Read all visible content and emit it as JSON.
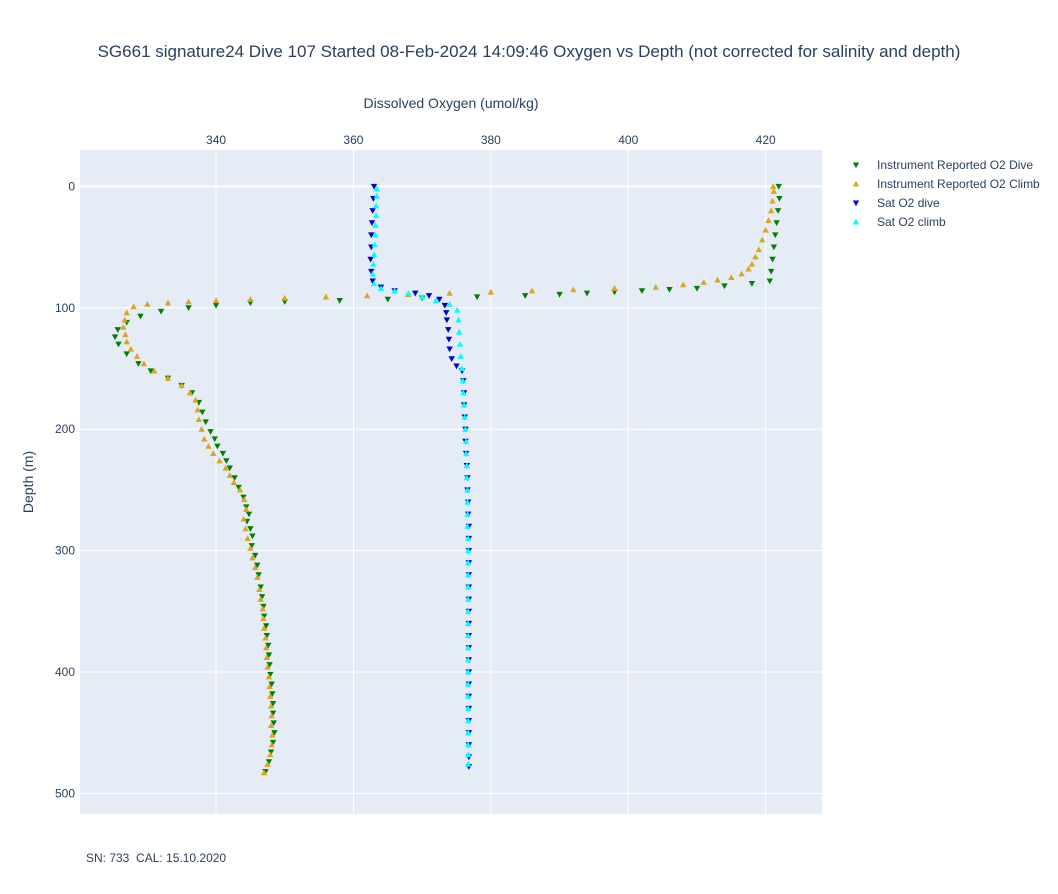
{
  "chart_data": {
    "type": "scatter",
    "title": "SG661 signature24 Dive 107 Started 08-Feb-2024 14:09:46  Oxygen vs Depth (not corrected for salinity and depth)",
    "xlabel": "Dissolved Oxygen (umol/kg)",
    "ylabel": "Depth (m)",
    "x_axis_side": "top",
    "xlim": [
      320.2,
      428.2
    ],
    "ylim": [
      -30,
      517
    ],
    "y_reversed": true,
    "x_ticks": [
      340,
      360,
      380,
      400,
      420
    ],
    "y_ticks": [
      0,
      100,
      200,
      300,
      400,
      500
    ],
    "grid": true,
    "legend_position": "right",
    "series": [
      {
        "name": "Instrument Reported O2 Dive",
        "marker": "triangle-down",
        "color": "#008000",
        "points": [
          [
            421.9,
            0
          ],
          [
            422.0,
            10
          ],
          [
            421.8,
            20
          ],
          [
            421.6,
            30
          ],
          [
            421.4,
            40
          ],
          [
            421.2,
            50
          ],
          [
            421.0,
            60
          ],
          [
            420.8,
            70
          ],
          [
            420.6,
            78
          ],
          [
            418.0,
            80
          ],
          [
            414.0,
            82
          ],
          [
            410.0,
            84
          ],
          [
            406.0,
            85
          ],
          [
            402.0,
            86
          ],
          [
            398.0,
            87
          ],
          [
            394.0,
            88
          ],
          [
            390.0,
            89
          ],
          [
            385.0,
            90
          ],
          [
            378.0,
            91
          ],
          [
            370.0,
            92
          ],
          [
            365.0,
            93
          ],
          [
            358.0,
            94
          ],
          [
            350.0,
            95
          ],
          [
            345.0,
            96
          ],
          [
            340.0,
            98
          ],
          [
            336.0,
            100
          ],
          [
            332.0,
            103
          ],
          [
            329.0,
            107
          ],
          [
            327.0,
            112
          ],
          [
            325.7,
            118
          ],
          [
            325.3,
            124
          ],
          [
            325.8,
            130
          ],
          [
            327.0,
            138
          ],
          [
            328.7,
            146
          ],
          [
            330.5,
            152
          ],
          [
            333.0,
            158
          ],
          [
            335.0,
            164
          ],
          [
            336.5,
            170
          ],
          [
            337.5,
            178
          ],
          [
            338.0,
            186
          ],
          [
            338.5,
            194
          ],
          [
            339.2,
            202
          ],
          [
            339.8,
            208
          ],
          [
            340.2,
            214
          ],
          [
            341.0,
            220
          ],
          [
            341.5,
            226
          ],
          [
            342.0,
            232
          ],
          [
            342.7,
            240
          ],
          [
            343.3,
            248
          ],
          [
            344.0,
            256
          ],
          [
            344.4,
            264
          ],
          [
            344.8,
            270
          ],
          [
            344.5,
            276
          ],
          [
            345.0,
            282
          ],
          [
            345.3,
            288
          ],
          [
            345.2,
            296
          ],
          [
            345.7,
            304
          ],
          [
            346.0,
            312
          ],
          [
            346.2,
            320
          ],
          [
            346.5,
            330
          ],
          [
            346.7,
            338
          ],
          [
            346.9,
            346
          ],
          [
            347.0,
            354
          ],
          [
            347.3,
            362
          ],
          [
            347.4,
            370
          ],
          [
            347.6,
            378
          ],
          [
            347.7,
            386
          ],
          [
            347.8,
            394
          ],
          [
            347.9,
            402
          ],
          [
            348.1,
            410
          ],
          [
            348.2,
            418
          ],
          [
            348.3,
            426
          ],
          [
            348.3,
            434
          ],
          [
            348.4,
            442
          ],
          [
            348.5,
            450
          ],
          [
            348.3,
            458
          ],
          [
            348.0,
            466
          ],
          [
            347.7,
            474
          ],
          [
            347.2,
            482
          ]
        ]
      },
      {
        "name": "Instrument Reported O2 Climb",
        "marker": "triangle-up",
        "color": "#DAA520",
        "points": [
          [
            347.0,
            483
          ],
          [
            347.5,
            476
          ],
          [
            347.9,
            468
          ],
          [
            348.1,
            460
          ],
          [
            348.2,
            452
          ],
          [
            348.0,
            444
          ],
          [
            348.1,
            436
          ],
          [
            348.0,
            428
          ],
          [
            347.9,
            420
          ],
          [
            347.8,
            412
          ],
          [
            347.7,
            404
          ],
          [
            347.5,
            396
          ],
          [
            347.4,
            388
          ],
          [
            347.3,
            380
          ],
          [
            347.2,
            372
          ],
          [
            347.0,
            364
          ],
          [
            346.9,
            356
          ],
          [
            346.8,
            348
          ],
          [
            346.5,
            340
          ],
          [
            346.3,
            332
          ],
          [
            346.0,
            322
          ],
          [
            345.7,
            314
          ],
          [
            345.3,
            306
          ],
          [
            345.0,
            298
          ],
          [
            344.6,
            290
          ],
          [
            344.3,
            282
          ],
          [
            344.0,
            274
          ],
          [
            344.4,
            266
          ],
          [
            344.1,
            258
          ],
          [
            343.5,
            250
          ],
          [
            342.6,
            244
          ],
          [
            342.0,
            238
          ],
          [
            341.4,
            232
          ],
          [
            340.5,
            226
          ],
          [
            339.6,
            220
          ],
          [
            338.9,
            214
          ],
          [
            338.3,
            208
          ],
          [
            337.9,
            200
          ],
          [
            337.5,
            192
          ],
          [
            337.3,
            184
          ],
          [
            337.0,
            176
          ],
          [
            336.2,
            170
          ],
          [
            335.0,
            164
          ],
          [
            333.0,
            158
          ],
          [
            331.0,
            152
          ],
          [
            329.5,
            146
          ],
          [
            328.5,
            140
          ],
          [
            327.6,
            134
          ],
          [
            327.0,
            128
          ],
          [
            326.8,
            122
          ],
          [
            326.5,
            116
          ],
          [
            326.7,
            110
          ],
          [
            327.0,
            104
          ],
          [
            328.0,
            99
          ],
          [
            330.0,
            97
          ],
          [
            333.0,
            96
          ],
          [
            336.0,
            95
          ],
          [
            340.0,
            94
          ],
          [
            345.0,
            93
          ],
          [
            350.0,
            92
          ],
          [
            356.0,
            91
          ],
          [
            362.0,
            90
          ],
          [
            368.0,
            89
          ],
          [
            374.0,
            88
          ],
          [
            380.0,
            87
          ],
          [
            386.0,
            86
          ],
          [
            392.0,
            85
          ],
          [
            398.0,
            84
          ],
          [
            404.0,
            83
          ],
          [
            408.0,
            81
          ],
          [
            411.0,
            79
          ],
          [
            413.0,
            77
          ],
          [
            415.0,
            75
          ],
          [
            416.5,
            72
          ],
          [
            417.5,
            68
          ],
          [
            418.0,
            64
          ],
          [
            418.5,
            58
          ],
          [
            419.0,
            52
          ],
          [
            419.5,
            44
          ],
          [
            420.0,
            36
          ],
          [
            420.4,
            28
          ],
          [
            420.8,
            20
          ],
          [
            421.0,
            12
          ],
          [
            421.2,
            4
          ],
          [
            421.1,
            0
          ]
        ]
      },
      {
        "name": "Sat O2 dive",
        "marker": "triangle-down",
        "color": "#0000CD",
        "points": [
          [
            363.0,
            0
          ],
          [
            362.9,
            10
          ],
          [
            362.8,
            20
          ],
          [
            362.7,
            30
          ],
          [
            362.6,
            40
          ],
          [
            362.6,
            50
          ],
          [
            362.5,
            60
          ],
          [
            362.6,
            70
          ],
          [
            362.8,
            78
          ],
          [
            364.0,
            83
          ],
          [
            366.0,
            86
          ],
          [
            369.0,
            88
          ],
          [
            371.0,
            90
          ],
          [
            372.5,
            93
          ],
          [
            373.3,
            98
          ],
          [
            373.5,
            104
          ],
          [
            373.6,
            110
          ],
          [
            373.8,
            118
          ],
          [
            373.9,
            126
          ],
          [
            374.0,
            134
          ],
          [
            374.3,
            142
          ],
          [
            375.0,
            148
          ],
          [
            375.8,
            152
          ],
          [
            376.0,
            160
          ],
          [
            376.1,
            170
          ],
          [
            376.1,
            180
          ],
          [
            376.2,
            190
          ],
          [
            376.3,
            200
          ],
          [
            376.3,
            210
          ],
          [
            376.4,
            220
          ],
          [
            376.5,
            230
          ],
          [
            376.6,
            240
          ],
          [
            376.6,
            250
          ],
          [
            376.7,
            260
          ],
          [
            376.7,
            270
          ],
          [
            376.8,
            280
          ],
          [
            376.8,
            290
          ],
          [
            376.8,
            300
          ],
          [
            376.8,
            310
          ],
          [
            376.8,
            320
          ],
          [
            376.8,
            330
          ],
          [
            376.8,
            340
          ],
          [
            376.8,
            350
          ],
          [
            376.8,
            360
          ],
          [
            376.8,
            370
          ],
          [
            376.8,
            380
          ],
          [
            376.8,
            390
          ],
          [
            376.8,
            400
          ],
          [
            376.8,
            410
          ],
          [
            376.8,
            420
          ],
          [
            376.8,
            430
          ],
          [
            376.8,
            440
          ],
          [
            376.8,
            450
          ],
          [
            376.8,
            460
          ],
          [
            376.8,
            470
          ],
          [
            376.8,
            478
          ]
        ]
      },
      {
        "name": "Sat O2 climb",
        "marker": "triangle-up",
        "color": "#00FFFF",
        "points": [
          [
            376.7,
            476
          ],
          [
            376.7,
            468
          ],
          [
            376.7,
            460
          ],
          [
            376.7,
            450
          ],
          [
            376.7,
            440
          ],
          [
            376.7,
            430
          ],
          [
            376.7,
            420
          ],
          [
            376.7,
            410
          ],
          [
            376.7,
            400
          ],
          [
            376.7,
            390
          ],
          [
            376.7,
            380
          ],
          [
            376.7,
            370
          ],
          [
            376.7,
            360
          ],
          [
            376.7,
            350
          ],
          [
            376.7,
            340
          ],
          [
            376.7,
            330
          ],
          [
            376.7,
            320
          ],
          [
            376.7,
            310
          ],
          [
            376.7,
            300
          ],
          [
            376.7,
            290
          ],
          [
            376.6,
            280
          ],
          [
            376.6,
            270
          ],
          [
            376.6,
            260
          ],
          [
            376.6,
            250
          ],
          [
            376.5,
            240
          ],
          [
            376.5,
            230
          ],
          [
            376.4,
            220
          ],
          [
            376.4,
            210
          ],
          [
            376.3,
            200
          ],
          [
            376.2,
            190
          ],
          [
            376.1,
            180
          ],
          [
            376.0,
            170
          ],
          [
            375.9,
            160
          ],
          [
            375.8,
            150
          ],
          [
            375.6,
            140
          ],
          [
            375.5,
            130
          ],
          [
            375.4,
            120
          ],
          [
            375.3,
            110
          ],
          [
            375.1,
            102
          ],
          [
            374.0,
            97
          ],
          [
            372.0,
            94
          ],
          [
            370.0,
            91
          ],
          [
            368.0,
            88
          ],
          [
            366.0,
            86
          ],
          [
            364.0,
            84
          ],
          [
            363.0,
            80
          ],
          [
            362.8,
            72
          ],
          [
            362.9,
            64
          ],
          [
            363.0,
            56
          ],
          [
            363.1,
            48
          ],
          [
            363.2,
            40
          ],
          [
            363.2,
            32
          ],
          [
            363.3,
            24
          ],
          [
            363.3,
            16
          ],
          [
            363.4,
            8
          ],
          [
            363.4,
            2
          ]
        ]
      }
    ]
  },
  "footnote": "SN: 733  CAL: 15.10.2020"
}
